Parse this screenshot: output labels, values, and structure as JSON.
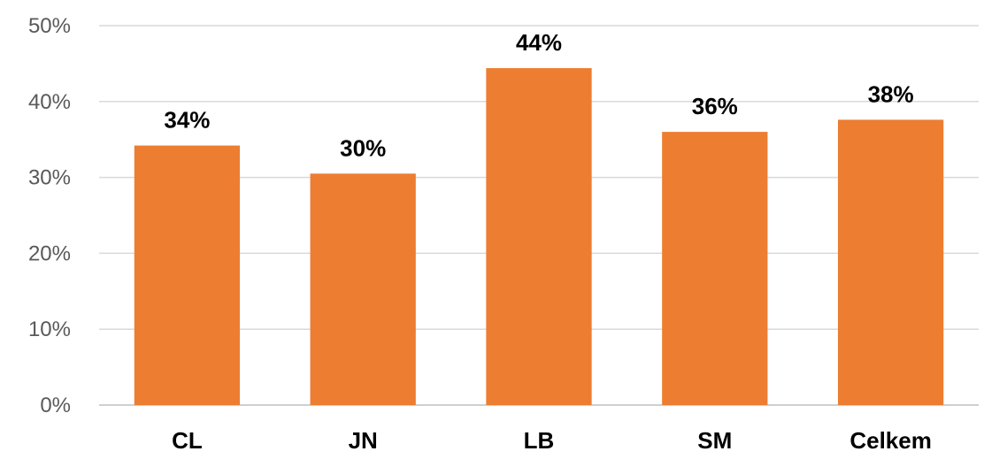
{
  "chart_data": {
    "type": "bar",
    "categories": [
      "CL",
      "JN",
      "LB",
      "SM",
      "Celkem"
    ],
    "values": [
      34.2,
      30.5,
      44.4,
      36.0,
      37.6
    ],
    "data_labels": [
      "34%",
      "30%",
      "44%",
      "36%",
      "38%"
    ],
    "y_ticks": [
      0,
      10,
      20,
      30,
      40,
      50
    ],
    "y_tick_labels": [
      "0%",
      "10%",
      "20%",
      "30%",
      "40%",
      "50%"
    ],
    "ylim": [
      0,
      50
    ],
    "grid": true,
    "legend": "none",
    "title": "",
    "xlabel": "",
    "ylabel": "",
    "bar_color": "#ED7D31"
  }
}
